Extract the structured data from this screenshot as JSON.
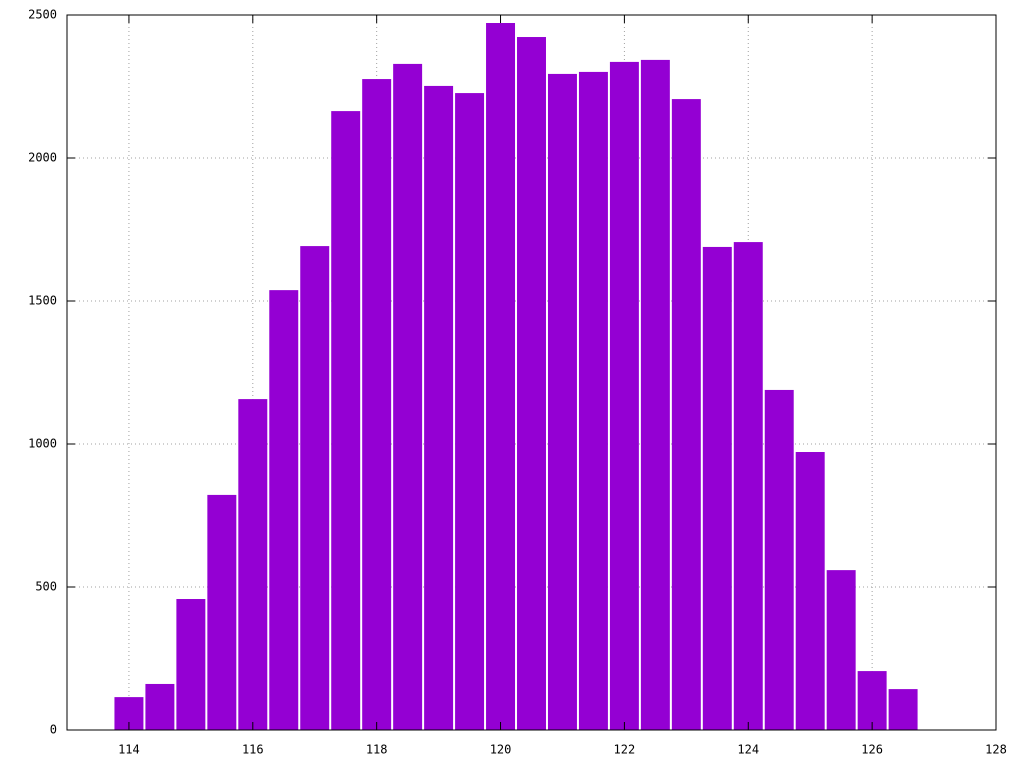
{
  "chart_data": {
    "type": "histogram",
    "bins": [
      113.75,
      114.25,
      114.75,
      115.25,
      115.75,
      116.25,
      116.75,
      117.25,
      117.75,
      118.25,
      118.75,
      119.25,
      119.75,
      120.25,
      120.75,
      121.25,
      121.75,
      122.25,
      122.75,
      123.25,
      123.75,
      124.25,
      124.75,
      125.25,
      125.75,
      126.25,
      126.75
    ],
    "values": [
      115,
      161,
      458,
      822,
      1157,
      1538,
      1692,
      2164,
      2276,
      2329,
      2252,
      2227,
      2472,
      2423,
      2294,
      2301,
      2336,
      2343,
      2206,
      1689,
      1706,
      1189,
      972,
      559,
      206,
      143
    ],
    "color": "#9400d3",
    "xlim": [
      113,
      128
    ],
    "xticks": [
      114,
      116,
      118,
      120,
      122,
      124,
      126,
      128
    ],
    "ylim": [
      0,
      2500
    ],
    "yticks": [
      0,
      500,
      1000,
      1500,
      2000,
      2500
    ],
    "grid": true
  }
}
